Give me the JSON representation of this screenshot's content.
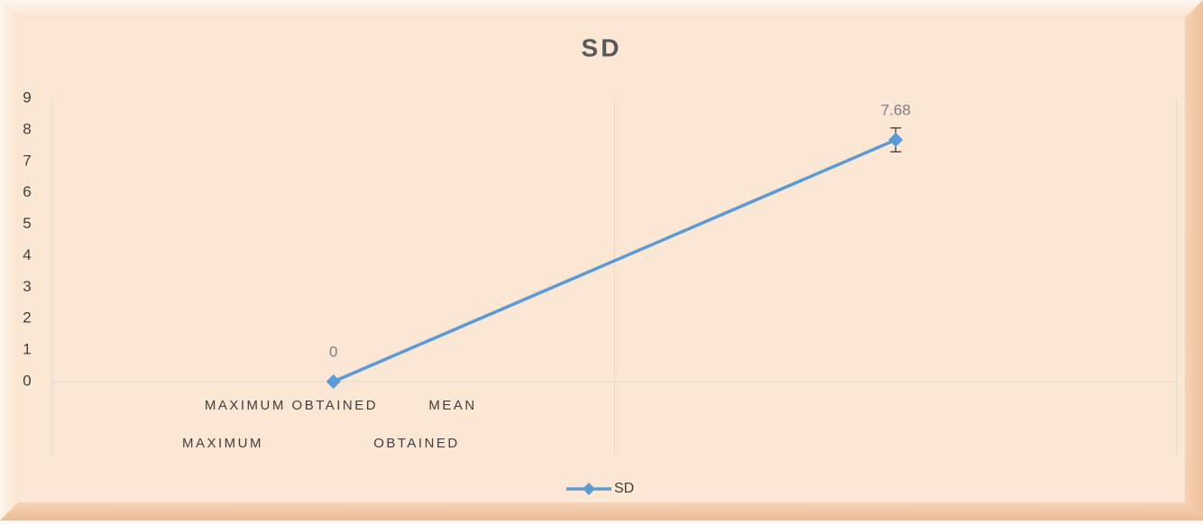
{
  "chart_data": {
    "type": "line",
    "title": "SD",
    "categories": [
      null,
      null
    ],
    "category_label_rows": [
      [
        "MAXIMUM OBTAINED",
        "MEAN"
      ],
      [
        "MAXIMUM",
        "OBTAINED"
      ]
    ],
    "series": [
      {
        "name": "SD",
        "color": "#5b9bd5",
        "values": [
          0,
          7.68
        ],
        "errors": [
          null,
          0.38
        ]
      }
    ],
    "ylim": [
      0,
      9
    ],
    "yticks": [
      0,
      1,
      2,
      3,
      4,
      5,
      6,
      7,
      8,
      9
    ],
    "grid": "vertical",
    "legend": "bottom"
  }
}
